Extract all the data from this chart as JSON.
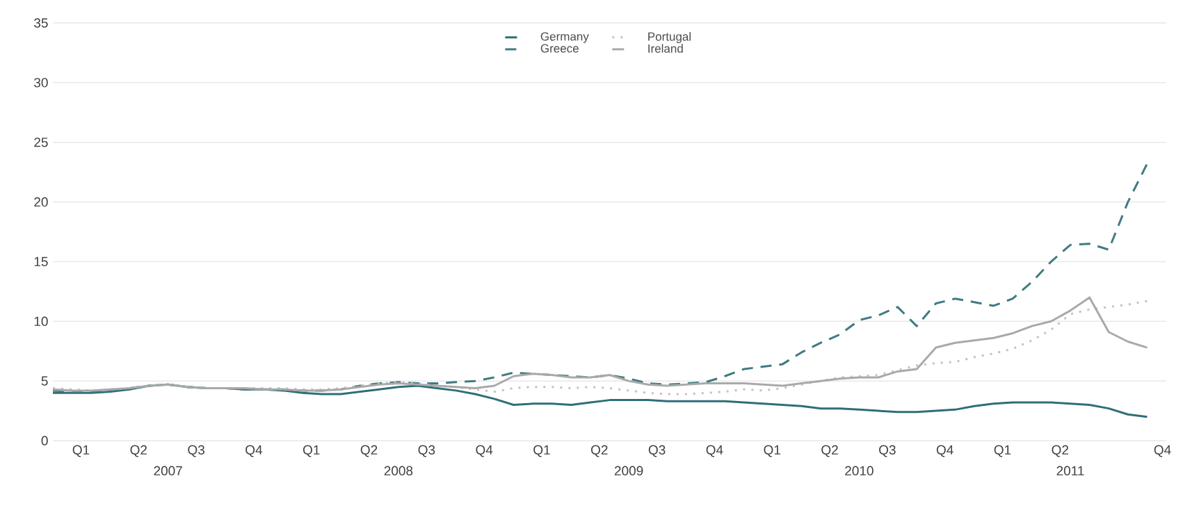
{
  "chart_data": {
    "type": "line",
    "x": [
      "2007-01",
      "2007-02",
      "2007-03",
      "2007-04",
      "2007-05",
      "2007-06",
      "2007-07",
      "2007-08",
      "2007-09",
      "2007-10",
      "2007-11",
      "2007-12",
      "2008-01",
      "2008-02",
      "2008-03",
      "2008-04",
      "2008-05",
      "2008-06",
      "2008-07",
      "2008-08",
      "2008-09",
      "2008-10",
      "2008-11",
      "2008-12",
      "2009-01",
      "2009-02",
      "2009-03",
      "2009-04",
      "2009-05",
      "2009-06",
      "2009-07",
      "2009-08",
      "2009-09",
      "2009-10",
      "2009-11",
      "2009-12",
      "2010-01",
      "2010-02",
      "2010-03",
      "2010-04",
      "2010-05",
      "2010-06",
      "2010-07",
      "2010-08",
      "2010-09",
      "2010-10",
      "2010-11",
      "2010-12",
      "2011-01",
      "2011-02",
      "2011-03",
      "2011-04",
      "2011-05",
      "2011-06",
      "2011-07",
      "2011-08",
      "2011-09",
      "2011-10"
    ],
    "series": [
      {
        "name": "Germany",
        "color": "#2f6e78",
        "line_style": "solid",
        "values": [
          4.0,
          4.0,
          4.0,
          4.1,
          4.3,
          4.6,
          4.7,
          4.5,
          4.4,
          4.4,
          4.3,
          4.3,
          4.2,
          4.0,
          3.9,
          3.9,
          4.1,
          4.3,
          4.5,
          4.6,
          4.4,
          4.2,
          3.9,
          3.5,
          3.0,
          3.1,
          3.1,
          3.0,
          3.2,
          3.4,
          3.4,
          3.4,
          3.3,
          3.3,
          3.3,
          3.3,
          3.2,
          3.1,
          3.0,
          2.9,
          2.7,
          2.7,
          2.6,
          2.5,
          2.4,
          2.4,
          2.5,
          2.6,
          2.9,
          3.1,
          3.2,
          3.2,
          3.2,
          3.1,
          3.0,
          2.7,
          2.2,
          2.0
        ]
      },
      {
        "name": "Greece",
        "color": "#3f7b80",
        "line_style": "dashed",
        "values": [
          4.2,
          4.1,
          4.1,
          4.2,
          4.4,
          4.6,
          4.7,
          4.5,
          4.4,
          4.4,
          4.3,
          4.3,
          4.3,
          4.2,
          4.2,
          4.3,
          4.6,
          4.8,
          4.9,
          4.8,
          4.8,
          4.9,
          5.0,
          5.3,
          5.7,
          5.6,
          5.5,
          5.4,
          5.3,
          5.5,
          5.2,
          4.8,
          4.7,
          4.8,
          4.9,
          5.4,
          6.0,
          6.2,
          6.4,
          7.4,
          8.2,
          8.9,
          10.1,
          10.5,
          11.2,
          9.6,
          11.5,
          11.9,
          11.6,
          11.3,
          11.9,
          13.3,
          15.0,
          16.4,
          16.5,
          16.0,
          20.0,
          23.2
        ]
      },
      {
        "name": "Portugal",
        "color": "#c9bfc5",
        "line_style": "dotted",
        "values": [
          4.4,
          4.3,
          4.2,
          4.3,
          4.4,
          4.6,
          4.7,
          4.5,
          4.4,
          4.4,
          4.4,
          4.4,
          4.4,
          4.3,
          4.3,
          4.4,
          4.6,
          4.8,
          4.9,
          4.8,
          4.6,
          4.5,
          4.3,
          4.1,
          4.4,
          4.5,
          4.5,
          4.4,
          4.5,
          4.4,
          4.2,
          4.0,
          3.9,
          3.9,
          4.0,
          4.1,
          4.3,
          4.2,
          4.4,
          4.7,
          5.0,
          5.3,
          5.4,
          5.5,
          5.9,
          6.3,
          6.5,
          6.6,
          7.0,
          7.3,
          7.7,
          8.4,
          9.3,
          10.6,
          11.0,
          11.2,
          11.4,
          11.7
        ]
      },
      {
        "name": "Ireland",
        "color": "#a9a9a9",
        "line_style": "solid",
        "values": [
          4.3,
          4.2,
          4.2,
          4.3,
          4.4,
          4.6,
          4.7,
          4.5,
          4.4,
          4.4,
          4.4,
          4.3,
          4.3,
          4.2,
          4.2,
          4.3,
          4.5,
          4.7,
          4.8,
          4.7,
          4.6,
          4.5,
          4.4,
          4.6,
          5.4,
          5.6,
          5.5,
          5.3,
          5.3,
          5.5,
          5.0,
          4.7,
          4.6,
          4.7,
          4.8,
          4.8,
          4.8,
          4.7,
          4.6,
          4.8,
          5.0,
          5.2,
          5.3,
          5.3,
          5.8,
          6.0,
          7.8,
          8.2,
          8.4,
          8.6,
          9.0,
          9.6,
          10.0,
          10.9,
          12.0,
          9.1,
          8.3,
          7.8
        ]
      }
    ],
    "xlim": [
      "2007-01",
      "2011-11"
    ],
    "xticks": [
      {
        "value": "2007-02-15",
        "label": "Q1"
      },
      {
        "value": "2007-05-15",
        "label": "Q2"
      },
      {
        "value": "2007-08-15",
        "label": "Q3"
      },
      {
        "value": "2007-11-15",
        "label": "Q4"
      },
      {
        "value": "2008-02-15",
        "label": "Q1"
      },
      {
        "value": "2008-05-15",
        "label": "Q2"
      },
      {
        "value": "2008-08-15",
        "label": "Q3"
      },
      {
        "value": "2008-11-15",
        "label": "Q4"
      },
      {
        "value": "2009-02-15",
        "label": "Q1"
      },
      {
        "value": "2009-05-15",
        "label": "Q2"
      },
      {
        "value": "2009-08-15",
        "label": "Q3"
      },
      {
        "value": "2009-11-15",
        "label": "Q4"
      },
      {
        "value": "2010-02-15",
        "label": "Q1"
      },
      {
        "value": "2010-05-15",
        "label": "Q2"
      },
      {
        "value": "2010-08-15",
        "label": "Q3"
      },
      {
        "value": "2010-11-15",
        "label": "Q4"
      },
      {
        "value": "2011-02-15",
        "label": "Q1"
      },
      {
        "value": "2011-05-15",
        "label": "Q2"
      },
      {
        "value": "2011-10-25",
        "label": "Q4"
      }
    ],
    "x2lim": [
      "2007-01",
      "2011-11"
    ],
    "x2ticks": [
      {
        "value": "2007-07",
        "label": "2007"
      },
      {
        "value": "2008-07",
        "label": "2008"
      },
      {
        "value": "2009-07",
        "label": "2009"
      },
      {
        "value": "2010-07",
        "label": "2010"
      },
      {
        "value": "2011-06",
        "label": "2011"
      }
    ],
    "ylim": [
      0,
      35
    ],
    "yticks": [
      0,
      5,
      10,
      15,
      20,
      25,
      30,
      35
    ],
    "grid": "y",
    "legend": "top"
  }
}
